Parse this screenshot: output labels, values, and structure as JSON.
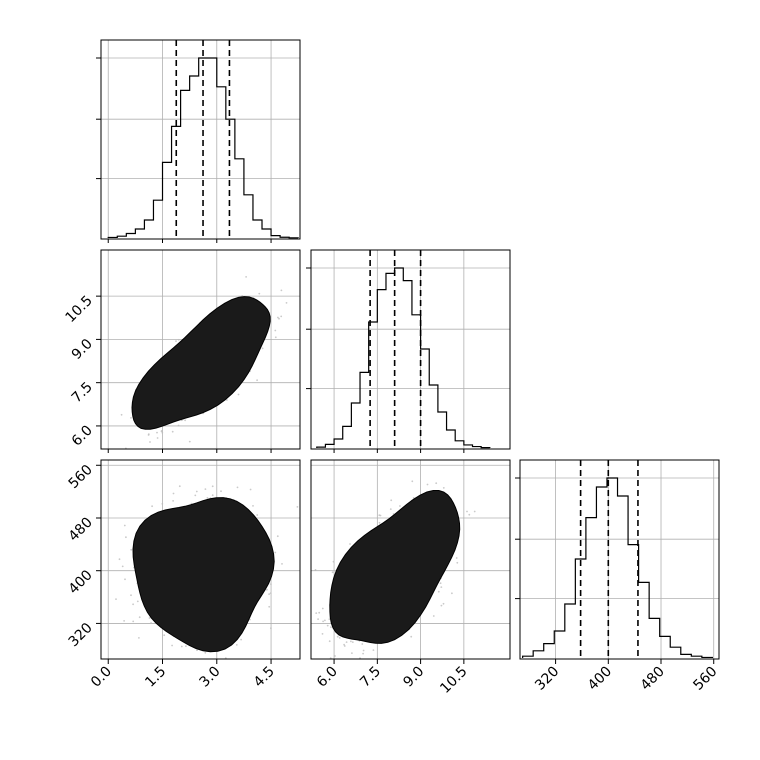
{
  "chart_data": {
    "type": "corner",
    "params": [
      "",
      "",
      ""
    ],
    "title": "",
    "grid": true,
    "colors": {
      "ink": "#000000",
      "grid": "#b0b0b0",
      "scatter": "#bdbdbd",
      "frame": "#000000"
    },
    "axes": {
      "p0": {
        "range": [
          -0.2,
          5.3
        ],
        "ticks": [
          0.0,
          1.5,
          3.0,
          4.5
        ],
        "tick_labels": [
          "0.0",
          "1.5",
          "3.0",
          "4.5"
        ]
      },
      "p1": {
        "range": [
          5.2,
          12.1
        ],
        "ticks": [
          6.0,
          7.5,
          9.0,
          10.5
        ],
        "tick_labels": [
          "6.0",
          "7.5",
          "9.0",
          "10.5"
        ]
      },
      "p2": {
        "range": [
          266,
          568
        ],
        "ticks": [
          320,
          400,
          480,
          560
        ],
        "tick_labels": [
          "320",
          "400",
          "480",
          "560"
        ]
      }
    },
    "marginals": [
      {
        "param": "p0",
        "quantiles": [
          1.88,
          2.62,
          3.35
        ],
        "hist_max": 1,
        "bin_edges": [
          0.0,
          0.25,
          0.5,
          0.75,
          1.0,
          1.25,
          1.5,
          1.75,
          2.0,
          2.25,
          2.5,
          2.75,
          3.0,
          3.25,
          3.5,
          3.75,
          4.0,
          4.25,
          4.5,
          4.75,
          5.0,
          5.25
        ],
        "heights": [
          0.003,
          0.01,
          0.025,
          0.05,
          0.1,
          0.21,
          0.42,
          0.62,
          0.82,
          0.9,
          1.0,
          1.0,
          0.84,
          0.66,
          0.44,
          0.24,
          0.1,
          0.05,
          0.013,
          0.004,
          0.001
        ]
      },
      {
        "param": "p1",
        "quantiles": [
          7.25,
          8.1,
          9.0
        ],
        "hist_max": 1,
        "bin_edges": [
          5.4,
          5.7,
          6.0,
          6.3,
          6.6,
          6.9,
          7.2,
          7.5,
          7.8,
          8.1,
          8.4,
          8.7,
          9.0,
          9.3,
          9.6,
          9.9,
          10.2,
          10.5,
          10.8,
          11.1,
          11.4
        ],
        "heights": [
          0.005,
          0.02,
          0.05,
          0.12,
          0.25,
          0.42,
          0.7,
          0.88,
          0.97,
          1.0,
          0.93,
          0.74,
          0.55,
          0.35,
          0.2,
          0.1,
          0.04,
          0.017,
          0.008,
          0.002
        ]
      },
      {
        "param": "p2",
        "quantiles": [
          358,
          400,
          445
        ],
        "hist_max": 1,
        "bin_edges": [
          270,
          286,
          302,
          318,
          334,
          350,
          366,
          382,
          398,
          414,
          430,
          446,
          462,
          478,
          494,
          510,
          526,
          542,
          558
        ],
        "heights": [
          0.01,
          0.04,
          0.08,
          0.15,
          0.3,
          0.55,
          0.78,
          0.95,
          1.0,
          0.9,
          0.63,
          0.42,
          0.22,
          0.12,
          0.06,
          0.02,
          0.01,
          0.003
        ]
      }
    ],
    "pairs": [
      {
        "x": "p0",
        "y": "p1",
        "mean": [
          2.62,
          8.1
        ],
        "sd": [
          0.72,
          0.85
        ],
        "rho": 0.7
      },
      {
        "x": "p0",
        "y": "p2",
        "mean": [
          2.62,
          400
        ],
        "sd": [
          0.72,
          43
        ],
        "rho": 0.02
      },
      {
        "x": "p1",
        "y": "p2",
        "mean": [
          8.1,
          400
        ],
        "sd": [
          0.85,
          43
        ],
        "rho": 0.55
      }
    ],
    "contour_levels": [
      0.12,
      0.4,
      0.68,
      0.89,
      0.97
    ]
  }
}
